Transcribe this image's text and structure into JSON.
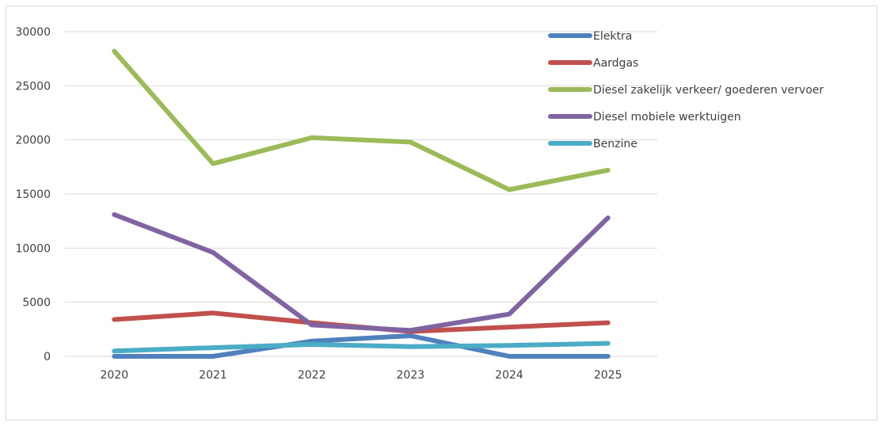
{
  "chart_data": {
    "type": "line",
    "title": "",
    "xlabel": "",
    "ylabel": "",
    "categories": [
      "2020",
      "2021",
      "2022",
      "2023",
      "2024",
      "2025"
    ],
    "ylim": [
      0,
      30000
    ],
    "yticks": [
      0,
      5000,
      10000,
      15000,
      20000,
      25000,
      30000
    ],
    "grid": true,
    "legend_position": "top-right",
    "series": [
      {
        "name": "Elektra",
        "color": "#4f81bd",
        "values": [
          0,
          0,
          1400,
          1900,
          0,
          0
        ]
      },
      {
        "name": "Aardgas",
        "color": "#c0504d",
        "values": [
          3400,
          4000,
          3100,
          2300,
          2700,
          3100
        ]
      },
      {
        "name": "Diesel zakelijk verkeer/ goederen vervoer",
        "color": "#9bbb59",
        "values": [
          28200,
          17800,
          20200,
          19800,
          15400,
          17200
        ]
      },
      {
        "name": "Diesel mobiele werktuigen",
        "color": "#8064a2",
        "values": [
          13100,
          9600,
          2900,
          2400,
          3900,
          12800
        ]
      },
      {
        "name": "Benzine",
        "color": "#4bacc6",
        "values": [
          500,
          800,
          1100,
          900,
          1000,
          1200
        ]
      }
    ]
  }
}
